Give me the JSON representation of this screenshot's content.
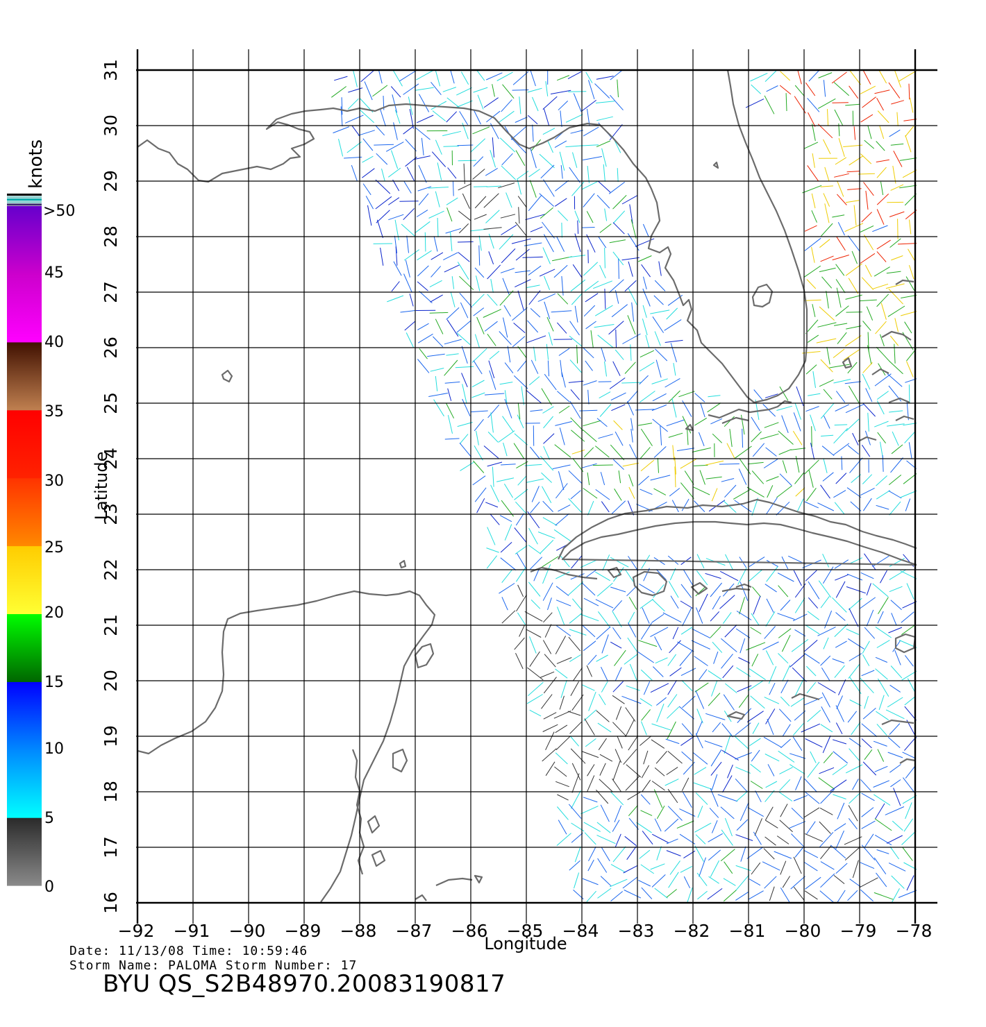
{
  "map": {
    "lon_range": [
      -92,
      -78
    ],
    "lat_range": [
      16,
      31
    ],
    "x_tick_labels": [
      "−92",
      "−91",
      "−90",
      "−89",
      "−88",
      "−87",
      "−86",
      "−85",
      "−84",
      "−83",
      "−82",
      "−81",
      "−80",
      "−79",
      "−78"
    ],
    "y_tick_labels": [
      "16",
      "17",
      "18",
      "19",
      "20",
      "21",
      "22",
      "23",
      "24",
      "25",
      "26",
      "27",
      "28",
      "29",
      "30",
      "31"
    ],
    "xlabel": "Longitude",
    "ylabel": "Latitude",
    "grid": true,
    "background": "#ffffff",
    "land_outline_color": "#6b6b6b",
    "grid_color": "#000000"
  },
  "colorbar": {
    "unit_label": "knots",
    "top_label": ">50",
    "labels": [
      "45",
      "40",
      "35",
      "30",
      "25",
      "20",
      "15",
      "10",
      "5",
      "0"
    ],
    "bands": [
      {
        "from": 0,
        "to": 5,
        "colors": [
          "#8a8a8a",
          "#2a2a2a"
        ]
      },
      {
        "from": 5,
        "to": 10,
        "colors": [
          "#00ffff",
          "#0088ff"
        ]
      },
      {
        "from": 10,
        "to": 15,
        "colors": [
          "#0088ff",
          "#0000ff"
        ]
      },
      {
        "from": 15,
        "to": 20,
        "colors": [
          "#006600",
          "#00ff00"
        ]
      },
      {
        "from": 20,
        "to": 25,
        "colors": [
          "#ffff33",
          "#ffcc00"
        ]
      },
      {
        "from": 25,
        "to": 30,
        "colors": [
          "#ff8800",
          "#ff3300"
        ]
      },
      {
        "from": 30,
        "to": 35,
        "colors": [
          "#ff2200",
          "#ff0000"
        ]
      },
      {
        "from": 35,
        "to": 40,
        "colors": [
          "#c08050",
          "#401000"
        ]
      },
      {
        "from": 40,
        "to": 45,
        "colors": [
          "#ff00ff",
          "#cc00cc"
        ]
      },
      {
        "from": 45,
        "to": 50,
        "colors": [
          "#cc00cc",
          "#6600cc"
        ]
      }
    ]
  },
  "wind_colors": {
    "calm": "#333333",
    "light": "#22dddd",
    "moderate": "#1a66ee",
    "fresh": "#0a24cc",
    "strong": "#22aa22",
    "gale": "#eecc00",
    "storm": "#ee2200"
  },
  "footer": {
    "line1": "Date: 11/13/08   Time: 10:59:46",
    "line2": "Storm Name: PALOMA   Storm Number: 17",
    "title": "BYU QS_S2B48970.20083190817"
  }
}
